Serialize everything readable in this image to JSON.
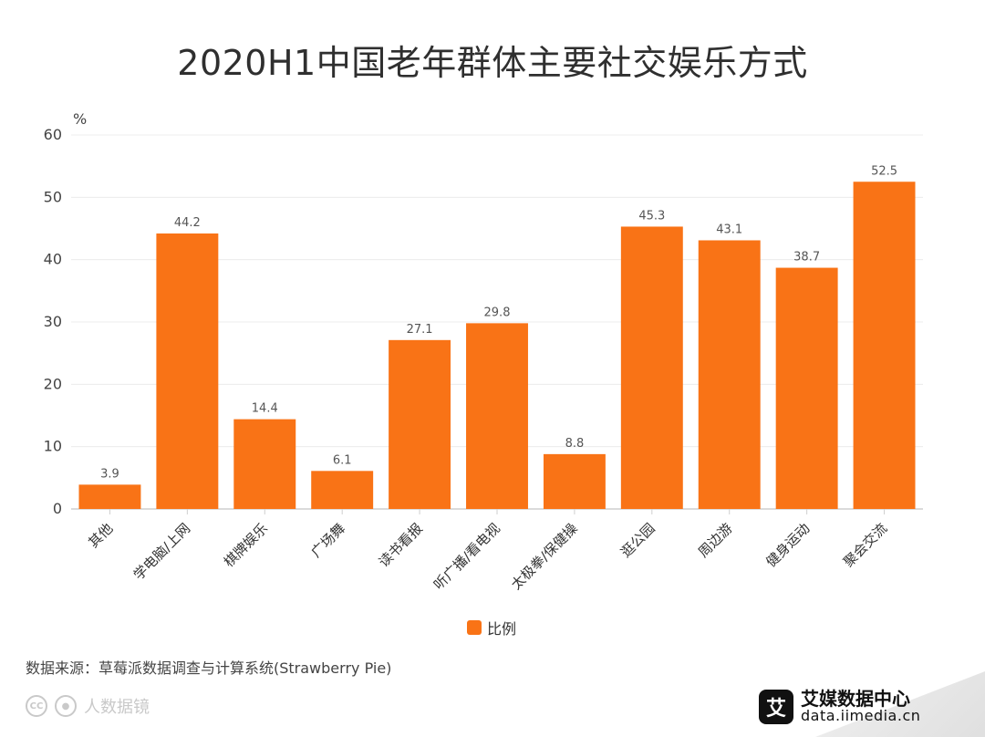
{
  "page": {
    "title": "2020H1中国老年群体主要社交娱乐方式"
  },
  "chart_data": {
    "type": "bar",
    "title": "2020H1中国老年群体主要社交娱乐方式",
    "xlabel": "",
    "ylabel": "%",
    "ylim": [
      0,
      60
    ],
    "yticks": [
      0,
      10,
      20,
      30,
      40,
      50,
      60
    ],
    "grid": true,
    "legend_position": "bottom-center",
    "categories": [
      "其他",
      "学电脑/上网",
      "棋牌娱乐",
      "广场舞",
      "读书看报",
      "听广播/看电视",
      "太极拳/保健操",
      "逛公园",
      "周边游",
      "健身运动",
      "聚会交流"
    ],
    "series": [
      {
        "name": "比例",
        "color": "#f97316",
        "values": [
          3.9,
          44.2,
          14.4,
          6.1,
          27.1,
          29.8,
          8.8,
          45.3,
          43.1,
          38.7,
          52.5
        ]
      }
    ]
  },
  "legend": {
    "label": "比例",
    "color": "#f97316"
  },
  "footer": {
    "source": "数据来源：草莓派数据调查与计算系统(Strawberry Pie)",
    "watermark_left": "人数据镜",
    "brand_cn": "艾媒数据中心",
    "brand_en": "data.iimedia.cn",
    "brand_logo_text": "艾"
  }
}
